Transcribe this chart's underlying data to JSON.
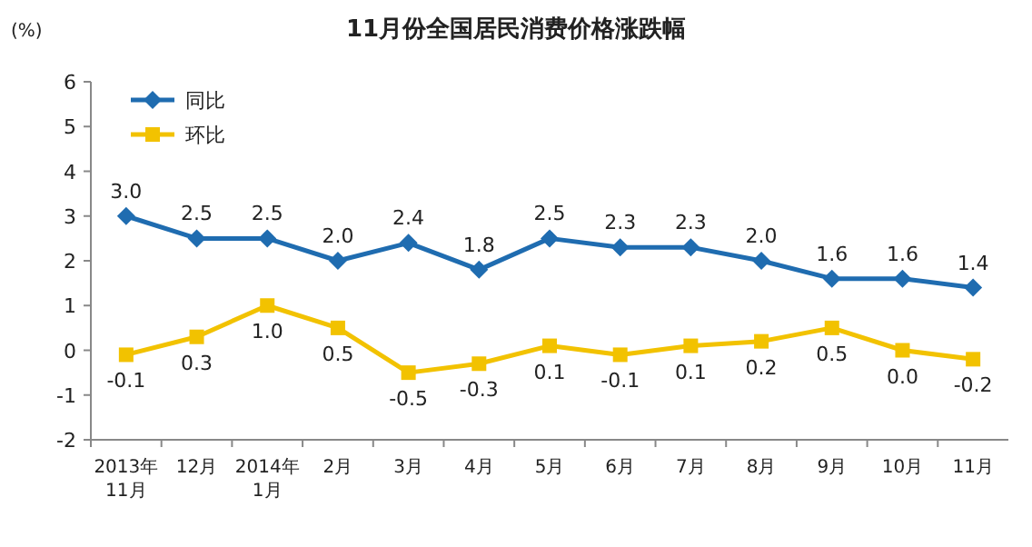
{
  "chart_data": {
    "type": "line",
    "title": "11月份全国居民消费价格涨跌幅",
    "ylabel": "(%)",
    "categories": [
      "2013年\n11月",
      "12月",
      "2014年\n1月",
      "2月",
      "3月",
      "4月",
      "5月",
      "6月",
      "7月",
      "8月",
      "9月",
      "10月",
      "11月"
    ],
    "series": [
      {
        "name": "同比",
        "color": "#1f6cb0",
        "marker": "diamond",
        "values": [
          3.0,
          2.5,
          2.5,
          2.0,
          2.4,
          1.8,
          2.5,
          2.3,
          2.3,
          2.0,
          1.6,
          1.6,
          1.4
        ],
        "value_labels": [
          "3.0",
          "2.5",
          "2.5",
          "2.0",
          "2.4",
          "1.8",
          "2.5",
          "2.3",
          "2.3",
          "2.0",
          "1.6",
          "1.6",
          "1.4"
        ]
      },
      {
        "name": "环比",
        "color": "#f2c200",
        "marker": "square",
        "values": [
          -0.1,
          0.3,
          1.0,
          0.5,
          -0.5,
          -0.3,
          0.1,
          -0.1,
          0.1,
          0.2,
          0.5,
          0.0,
          -0.2
        ],
        "value_labels": [
          "-0.1",
          "0.3",
          "1.0",
          "0.5",
          "-0.5",
          "-0.3",
          "0.1",
          "-0.1",
          "0.1",
          "0.2",
          "0.5",
          "0.0",
          "-0.2"
        ]
      }
    ],
    "ylim": [
      -2,
      6
    ],
    "yticks": [
      -2,
      -1,
      0,
      1,
      2,
      3,
      4,
      5,
      6
    ],
    "legend": "top left",
    "grid": false,
    "line_style": "solid"
  }
}
